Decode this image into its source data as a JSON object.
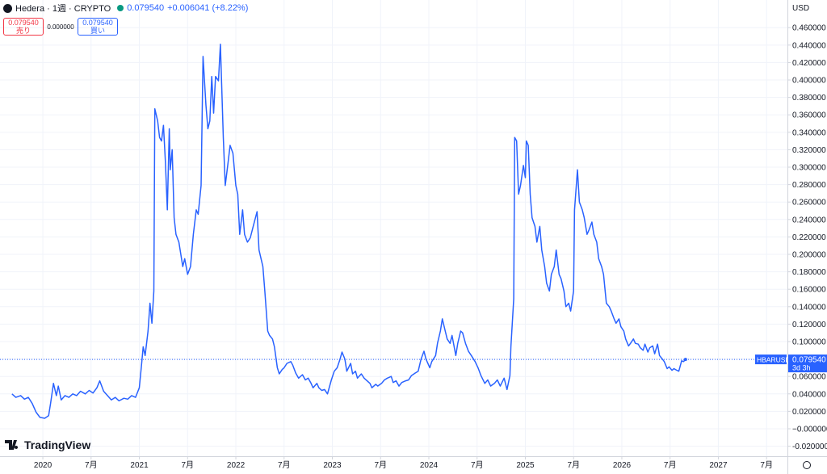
{
  "header": {
    "symbol": "Hedera · 1週 · CRYPTO",
    "price": "0.079540",
    "change": "+0.006041 (+8.22%)",
    "sell_price": "0.079540",
    "sell_label": "売り",
    "spread": "0.000000",
    "buy_price": "0.079540",
    "buy_label": "買い"
  },
  "currency": "USD",
  "logo": "TradingView",
  "chart_data": {
    "type": "line",
    "x": [
      2019.68,
      2019.72,
      2019.77,
      2019.81,
      2019.85,
      2019.89,
      2019.93,
      2019.97,
      2020.02,
      2020.06,
      2020.08,
      2020.11,
      2020.14,
      2020.16,
      2020.19,
      2020.23,
      2020.27,
      2020.31,
      2020.35,
      2020.39,
      2020.44,
      2020.48,
      2020.52,
      2020.56,
      2020.59,
      2020.63,
      2020.67,
      2020.71,
      2020.75,
      2020.79,
      2020.84,
      2020.88,
      2020.92,
      2020.96,
      2021.0,
      2021.02,
      2021.04,
      2021.06,
      2021.09,
      2021.11,
      2021.13,
      2021.15,
      2021.16,
      2021.19,
      2021.21,
      2021.23,
      2021.25,
      2021.27,
      2021.29,
      2021.31,
      2021.32,
      2021.34,
      2021.36,
      2021.38,
      2021.41,
      2021.45,
      2021.47,
      2021.5,
      2021.53,
      2021.56,
      2021.59,
      2021.61,
      2021.64,
      2021.66,
      2021.69,
      2021.71,
      2021.73,
      2021.75,
      2021.77,
      2021.79,
      2021.82,
      2021.84,
      2021.87,
      2021.89,
      2021.92,
      2021.94,
      2021.97,
      2022.0,
      2022.02,
      2022.04,
      2022.07,
      2022.09,
      2022.12,
      2022.15,
      2022.18,
      2022.22,
      2022.24,
      2022.28,
      2022.3,
      2022.33,
      2022.35,
      2022.38,
      2022.4,
      2022.43,
      2022.45,
      2022.48,
      2022.5,
      2022.53,
      2022.57,
      2022.59,
      2022.62,
      2022.65,
      2022.69,
      2022.72,
      2022.75,
      2022.78,
      2022.8,
      2022.84,
      2022.86,
      2022.89,
      2022.92,
      2022.95,
      2022.99,
      2023.02,
      2023.05,
      2023.08,
      2023.1,
      2023.13,
      2023.15,
      2023.19,
      2023.21,
      2023.24,
      2023.26,
      2023.3,
      2023.33,
      2023.36,
      2023.39,
      2023.41,
      2023.45,
      2023.47,
      2023.51,
      2023.54,
      2023.57,
      2023.61,
      2023.63,
      2023.66,
      2023.69,
      2023.72,
      2023.76,
      2023.79,
      2023.82,
      2023.86,
      2023.89,
      2023.92,
      2023.95,
      2023.97,
      2024.01,
      2024.03,
      2024.07,
      2024.09,
      2024.12,
      2024.14,
      2024.17,
      2024.19,
      2024.22,
      2024.24,
      2024.28,
      2024.3,
      2024.33,
      2024.35,
      2024.38,
      2024.41,
      2024.44,
      2024.48,
      2024.51,
      2024.54,
      2024.58,
      2024.61,
      2024.64,
      2024.68,
      2024.71,
      2024.74,
      2024.78,
      2024.81,
      2024.84,
      2024.85,
      2024.88,
      2024.89,
      2024.91,
      2024.93,
      2024.95,
      2024.98,
      2025.0,
      2025.01,
      2025.03,
      2025.05,
      2025.07,
      2025.1,
      2025.12,
      2025.15,
      2025.17,
      2025.2,
      2025.22,
      2025.25,
      2025.27,
      2025.3,
      2025.32,
      2025.35,
      2025.37,
      2025.4,
      2025.42,
      2025.45,
      2025.47,
      2025.5,
      2025.51,
      2025.54,
      2025.56,
      2025.59,
      2025.61,
      2025.64,
      2025.66,
      2025.69,
      2025.71,
      2025.74,
      2025.76,
      2025.79,
      2025.81,
      2025.84,
      2025.87,
      2025.89,
      2025.92,
      2025.94,
      2025.97,
      2025.99,
      2026.02,
      2026.04,
      2026.07,
      2026.09,
      2026.12,
      2026.14,
      2026.17,
      2026.19,
      2026.22,
      2026.24,
      2026.27,
      2026.29,
      2026.32,
      2026.34,
      2026.37,
      2026.39,
      2026.42,
      2026.44,
      2026.47,
      2026.49,
      2026.52,
      2026.54,
      2026.57,
      2026.59,
      2026.62,
      2026.64,
      2026.66
    ],
    "series": [
      {
        "name": "HBARUSD",
        "color": "#2962ff",
        "values": [
          0.04,
          0.036,
          0.038,
          0.034,
          0.036,
          0.029,
          0.019,
          0.013,
          0.012,
          0.015,
          0.029,
          0.052,
          0.038,
          0.049,
          0.033,
          0.038,
          0.036,
          0.04,
          0.038,
          0.043,
          0.04,
          0.044,
          0.041,
          0.047,
          0.055,
          0.043,
          0.038,
          0.033,
          0.036,
          0.032,
          0.035,
          0.034,
          0.038,
          0.036,
          0.047,
          0.07,
          0.094,
          0.084,
          0.112,
          0.144,
          0.121,
          0.158,
          0.367,
          0.353,
          0.334,
          0.33,
          0.348,
          0.306,
          0.251,
          0.344,
          0.297,
          0.32,
          0.242,
          0.223,
          0.214,
          0.186,
          0.195,
          0.177,
          0.186,
          0.223,
          0.251,
          0.246,
          0.279,
          0.427,
          0.371,
          0.344,
          0.353,
          0.404,
          0.362,
          0.404,
          0.399,
          0.441,
          0.334,
          0.279,
          0.306,
          0.325,
          0.316,
          0.279,
          0.269,
          0.223,
          0.251,
          0.223,
          0.214,
          0.219,
          0.232,
          0.249,
          0.205,
          0.186,
          0.158,
          0.112,
          0.107,
          0.103,
          0.094,
          0.07,
          0.063,
          0.068,
          0.07,
          0.075,
          0.077,
          0.073,
          0.064,
          0.058,
          0.062,
          0.056,
          0.058,
          0.052,
          0.047,
          0.052,
          0.047,
          0.044,
          0.045,
          0.04,
          0.056,
          0.066,
          0.07,
          0.08,
          0.088,
          0.08,
          0.066,
          0.075,
          0.063,
          0.066,
          0.058,
          0.063,
          0.058,
          0.055,
          0.052,
          0.047,
          0.051,
          0.049,
          0.052,
          0.056,
          0.058,
          0.06,
          0.053,
          0.055,
          0.049,
          0.053,
          0.055,
          0.056,
          0.061,
          0.064,
          0.066,
          0.08,
          0.089,
          0.08,
          0.07,
          0.077,
          0.084,
          0.098,
          0.112,
          0.126,
          0.112,
          0.103,
          0.098,
          0.107,
          0.084,
          0.098,
          0.112,
          0.11,
          0.098,
          0.089,
          0.084,
          0.077,
          0.07,
          0.061,
          0.052,
          0.056,
          0.049,
          0.052,
          0.056,
          0.049,
          0.058,
          0.045,
          0.061,
          0.094,
          0.149,
          0.334,
          0.33,
          0.269,
          0.279,
          0.302,
          0.288,
          0.33,
          0.325,
          0.269,
          0.242,
          0.232,
          0.214,
          0.232,
          0.205,
          0.186,
          0.167,
          0.158,
          0.177,
          0.186,
          0.205,
          0.177,
          0.172,
          0.158,
          0.14,
          0.144,
          0.135,
          0.158,
          0.251,
          0.297,
          0.26,
          0.251,
          0.242,
          0.223,
          0.228,
          0.237,
          0.223,
          0.214,
          0.195,
          0.186,
          0.177,
          0.144,
          0.14,
          0.135,
          0.126,
          0.121,
          0.126,
          0.117,
          0.112,
          0.103,
          0.095,
          0.098,
          0.103,
          0.098,
          0.097,
          0.093,
          0.09,
          0.097,
          0.088,
          0.093,
          0.095,
          0.086,
          0.097,
          0.084,
          0.08,
          0.077,
          0.069,
          0.071,
          0.067,
          0.069,
          0.067,
          0.066,
          0.078,
          0.077,
          0.07954
        ]
      }
    ],
    "last_price_label": {
      "symbol": "HBARUSD",
      "price": "0.079540",
      "countdown": "3d 3h"
    },
    "xlim": [
      2019.556,
      2027.716
    ],
    "ylim": [
      -0.0315,
      0.4917
    ],
    "xticks": [
      {
        "value": 2020,
        "label": "2020"
      },
      {
        "value": 2020.5,
        "label": "7月"
      },
      {
        "value": 2021,
        "label": "2021"
      },
      {
        "value": 2021.5,
        "label": "7月"
      },
      {
        "value": 2022,
        "label": "2022"
      },
      {
        "value": 2022.5,
        "label": "7月"
      },
      {
        "value": 2023,
        "label": "2023"
      },
      {
        "value": 2023.5,
        "label": "7月"
      },
      {
        "value": 2024,
        "label": "2024"
      },
      {
        "value": 2024.5,
        "label": "7月"
      },
      {
        "value": 2025,
        "label": "2025"
      },
      {
        "value": 2025.5,
        "label": "7月"
      },
      {
        "value": 2026,
        "label": "2026"
      },
      {
        "value": 2026.5,
        "label": "7月"
      },
      {
        "value": 2027,
        "label": "2027"
      },
      {
        "value": 2027.5,
        "label": "7月"
      }
    ],
    "yticks": [
      {
        "value": -0.02,
        "label": "-0.020000"
      },
      {
        "value": 0,
        "label": "−0.000000"
      },
      {
        "value": 0.02,
        "label": "0.020000"
      },
      {
        "value": 0.04,
        "label": "0.040000"
      },
      {
        "value": 0.06,
        "label": "0.060000"
      },
      {
        "value": 0.08,
        "label": "0.080000"
      },
      {
        "value": 0.1,
        "label": "0.100000"
      },
      {
        "value": 0.12,
        "label": "0.120000"
      },
      {
        "value": 0.14,
        "label": "0.140000"
      },
      {
        "value": 0.16,
        "label": "0.160000"
      },
      {
        "value": 0.18,
        "label": "0.180000"
      },
      {
        "value": 0.2,
        "label": "0.200000"
      },
      {
        "value": 0.22,
        "label": "0.220000"
      },
      {
        "value": 0.24,
        "label": "0.240000"
      },
      {
        "value": 0.26,
        "label": "0.260000"
      },
      {
        "value": 0.28,
        "label": "0.280000"
      },
      {
        "value": 0.3,
        "label": "0.300000"
      },
      {
        "value": 0.32,
        "label": "0.320000"
      },
      {
        "value": 0.34,
        "label": "0.340000"
      },
      {
        "value": 0.36,
        "label": "0.360000"
      },
      {
        "value": 0.38,
        "label": "0.380000"
      },
      {
        "value": 0.4,
        "label": "0.400000"
      },
      {
        "value": 0.42,
        "label": "0.420000"
      },
      {
        "value": 0.44,
        "label": "0.440000"
      },
      {
        "value": 0.46,
        "label": "0.460000"
      }
    ],
    "grid": true
  }
}
